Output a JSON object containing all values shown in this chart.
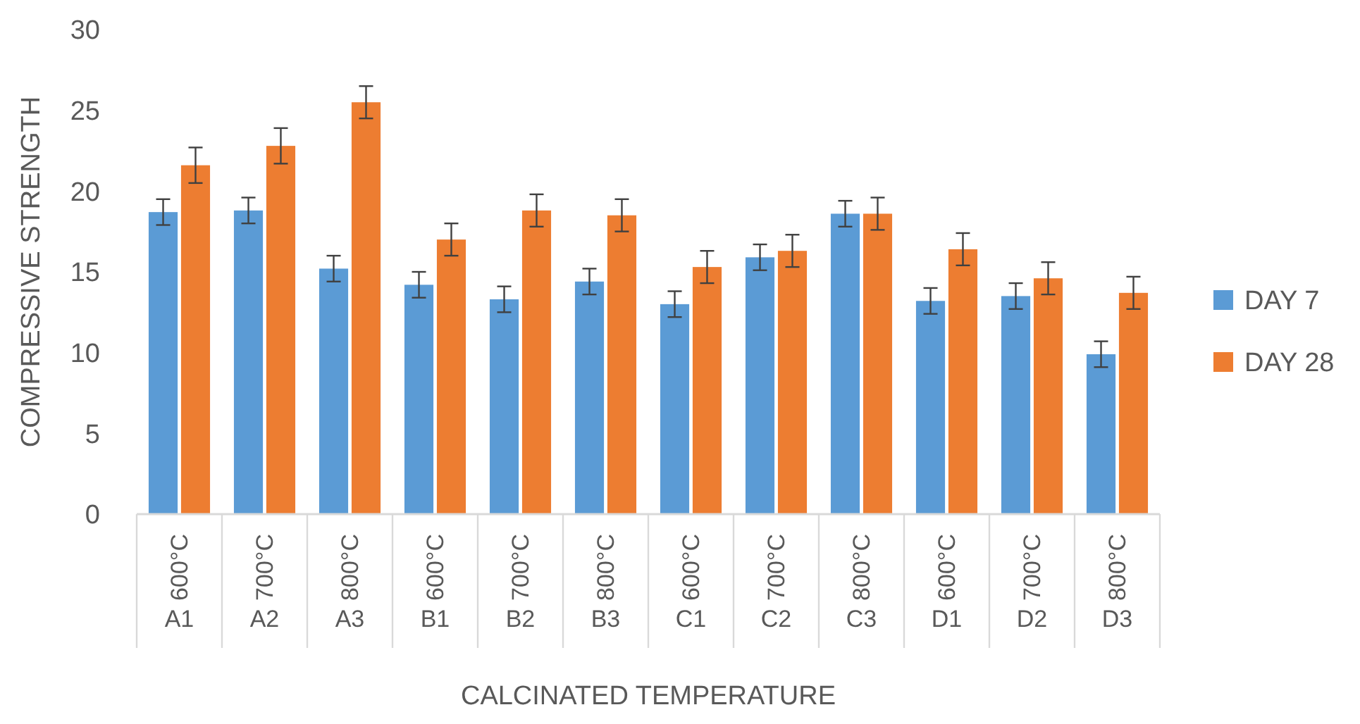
{
  "chart_data": {
    "type": "bar",
    "xlabel": "CALCINATED TEMPERATURE",
    "ylabel": "COMPRESSIVE STRENGTH",
    "categories": [
      "600°C",
      "700°C",
      "800°C",
      "600°C",
      "700°C",
      "800°C",
      "600°C",
      "700°C",
      "800°C",
      "600°C",
      "700°C",
      "800°C"
    ],
    "annotations": [
      "A1",
      "A2",
      "A3",
      "B1",
      "B2",
      "B3",
      "C1",
      "C2",
      "C3",
      "D1",
      "D2",
      "D3"
    ],
    "series": [
      {
        "name": "DAY 7",
        "color": "#5b9bd5",
        "values": [
          18.7,
          18.8,
          15.2,
          14.2,
          13.3,
          14.4,
          13.0,
          15.9,
          18.6,
          13.2,
          13.5,
          9.9
        ],
        "errors": [
          0.8,
          0.8,
          0.8,
          0.8,
          0.8,
          0.8,
          0.8,
          0.8,
          0.8,
          0.8,
          0.8,
          0.8
        ]
      },
      {
        "name": "DAY 28",
        "color": "#ed7d31",
        "values": [
          21.6,
          22.8,
          25.5,
          17.0,
          18.8,
          18.5,
          15.3,
          16.3,
          18.6,
          16.4,
          14.6,
          13.7
        ],
        "errors": [
          1.1,
          1.1,
          1.0,
          1.0,
          1.0,
          1.0,
          1.0,
          1.0,
          1.0,
          1.0,
          1.0,
          1.0
        ]
      }
    ],
    "ylim": [
      0,
      30
    ],
    "yticks": [
      0,
      5,
      10,
      15,
      20,
      25,
      30
    ],
    "legend": "right"
  }
}
